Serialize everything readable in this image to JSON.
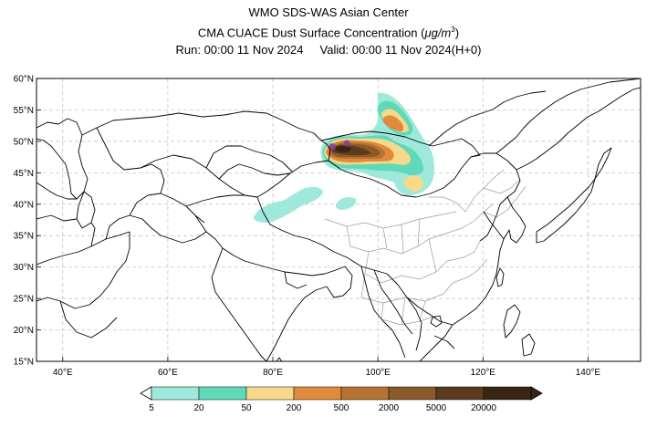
{
  "header": {
    "title": "WMO SDS-WAS Asian Center",
    "subtitle_main": "CMA CUACE Dust Surface Concentration (",
    "subtitle_unit": "μg/m",
    "subtitle_exp": "3",
    "subtitle_close": ")",
    "run_label": "Run: 00:00 11 Nov 2024",
    "valid_label": "Valid: 00:00 11 Nov 2024(H+0)"
  },
  "map": {
    "lon_range": [
      35,
      150
    ],
    "lat_range": [
      15,
      60
    ],
    "lon_ticks": [
      "40°E",
      "60°E",
      "80°E",
      "100°E",
      "120°E",
      "140°E"
    ],
    "lat_ticks": [
      "15°N",
      "20°N",
      "25°N",
      "30°N",
      "35°N",
      "40°N",
      "45°N",
      "50°N",
      "55°N",
      "60°N"
    ],
    "gridlines": true,
    "colors": {
      "coast": "#000000",
      "border": "#000000",
      "province": "#9a9a9a",
      "grid": "#bdbdbd"
    }
  },
  "dust_layers": {
    "c5": "#9fe8dc",
    "c20": "#5fd9b8",
    "c50": "#f7d98a",
    "c200": "#e08a3c",
    "c500": "#b87333",
    "c2000": "#8b5a2b",
    "c5000": "#5c3a1e",
    "c20000": "#3a2512",
    "marker": "#7b3fa0"
  },
  "colorbar": {
    "labels": [
      "5",
      "20",
      "50",
      "200",
      "500",
      "2000",
      "5000",
      "20000"
    ],
    "colors": [
      "#9fe8dc",
      "#5fd9b8",
      "#f7d98a",
      "#e08a3c",
      "#b87333",
      "#8b5a2b",
      "#5c3a1e",
      "#3a2512"
    ]
  }
}
